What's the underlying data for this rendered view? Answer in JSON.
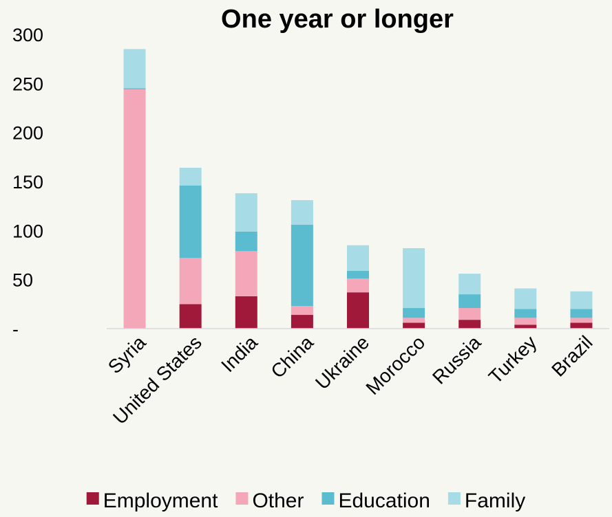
{
  "chart_data": {
    "type": "bar",
    "stacked": true,
    "title": "One year or longer",
    "xlabel": "",
    "ylabel": "",
    "ylim": [
      0,
      300
    ],
    "yticks": [
      0,
      50,
      100,
      150,
      200,
      250,
      300
    ],
    "ytick_labels": [
      "-",
      "50",
      "100",
      "150",
      "200",
      "250",
      "300"
    ],
    "grid": false,
    "legend": "bottom",
    "categories": [
      "Syria",
      "United States",
      "India",
      "China",
      "Ukraine",
      "Morocco",
      "Russia",
      "Turkey",
      "Brazil"
    ],
    "series": [
      {
        "name": "Employment",
        "color": "#a0183a",
        "values": [
          0,
          25,
          33,
          14,
          37,
          6,
          9,
          4,
          6
        ]
      },
      {
        "name": "Other",
        "color": "#f4a7b9",
        "values": [
          244,
          47,
          46,
          9,
          14,
          5,
          12,
          7,
          5
        ]
      },
      {
        "name": "Education",
        "color": "#5bbcd0",
        "values": [
          1,
          74,
          20,
          83,
          8,
          10,
          14,
          9,
          9
        ]
      },
      {
        "name": "Family",
        "color": "#a7dbe5",
        "values": [
          40,
          18,
          39,
          25,
          26,
          61,
          21,
          21,
          18
        ]
      }
    ]
  }
}
